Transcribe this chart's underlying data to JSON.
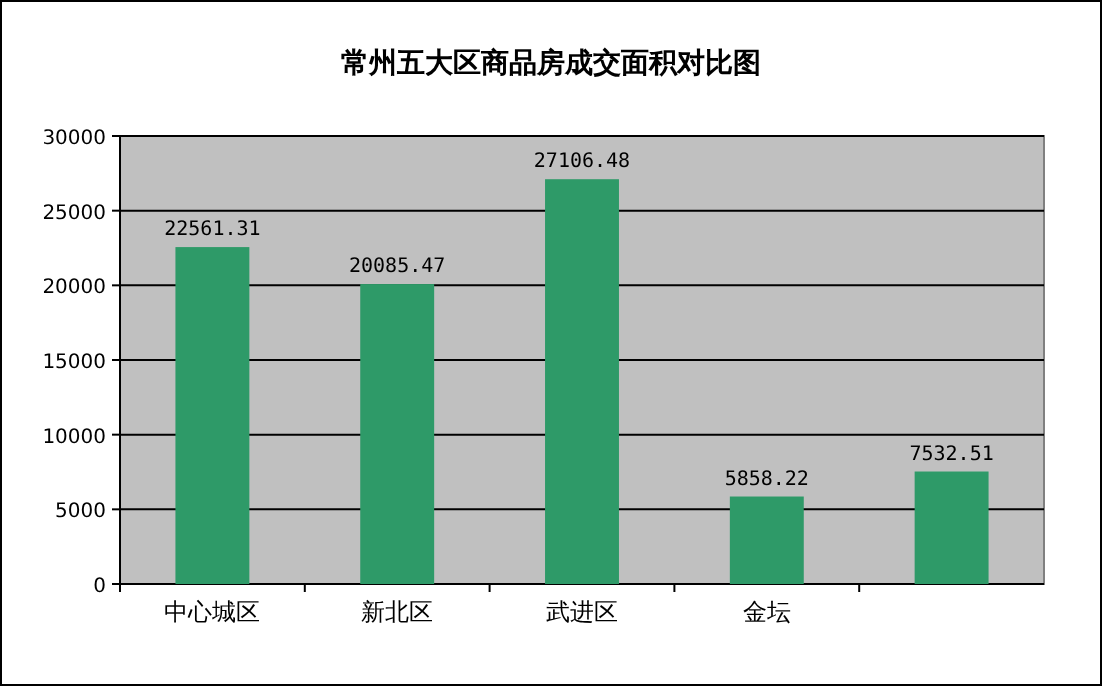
{
  "chart_data": {
    "type": "bar",
    "title": "常州五大区商品房成交面积对比图",
    "categories": [
      "中心城区",
      "新北区",
      "武进区",
      "金坛",
      null
    ],
    "values": [
      22561.31,
      20085.47,
      27106.48,
      5858.22,
      7532.51
    ],
    "value_labels": [
      "22561.31",
      "20085.47",
      "27106.48",
      "5858.22",
      "7532.51"
    ],
    "color": "#2e9a68",
    "ylim": [
      0,
      30000
    ],
    "yticks": [
      0,
      5000,
      10000,
      15000,
      20000,
      25000,
      30000
    ],
    "grid": "y"
  }
}
